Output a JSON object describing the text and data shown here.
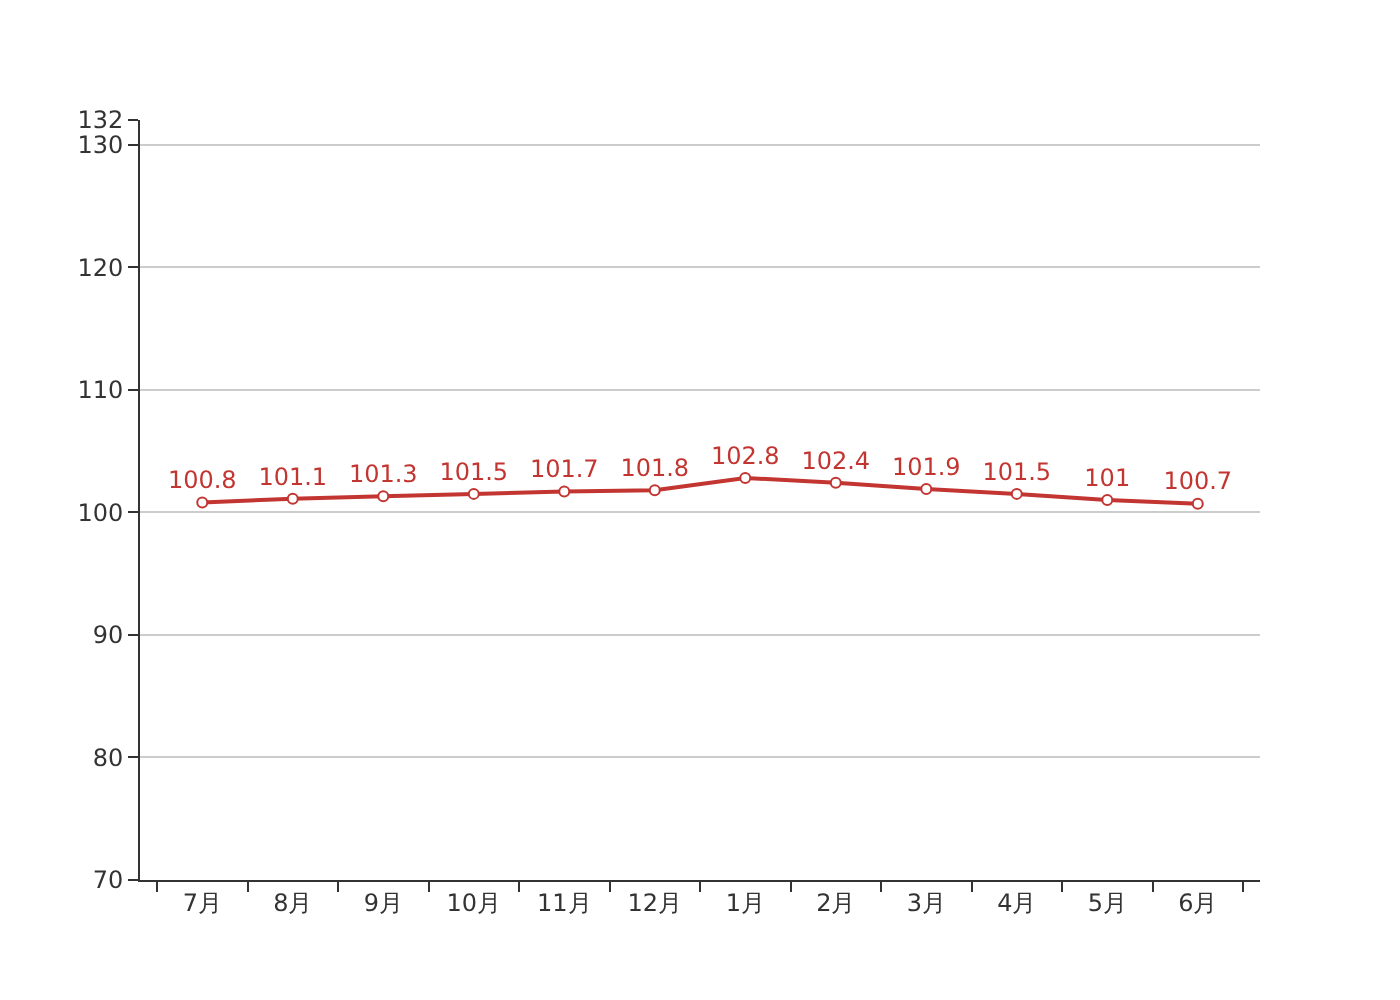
{
  "chart_data": {
    "type": "line",
    "categories": [
      "7月",
      "8月",
      "9月",
      "10月",
      "11月",
      "12月",
      "1月",
      "2月",
      "3月",
      "4月",
      "5月",
      "6月"
    ],
    "series": [
      {
        "color": "#c23531",
        "values": [
          100.8,
          101.1,
          101.3,
          101.5,
          101.7,
          101.8,
          102.8,
          102.4,
          101.9,
          101.5,
          101,
          100.7
        ]
      }
    ],
    "ylim": [
      70,
      132
    ],
    "yticks": [
      70,
      80,
      90,
      100,
      110,
      120,
      130,
      132
    ],
    "grid": "y",
    "marker": "circle",
    "line_style": "solid",
    "data_labels": true
  }
}
